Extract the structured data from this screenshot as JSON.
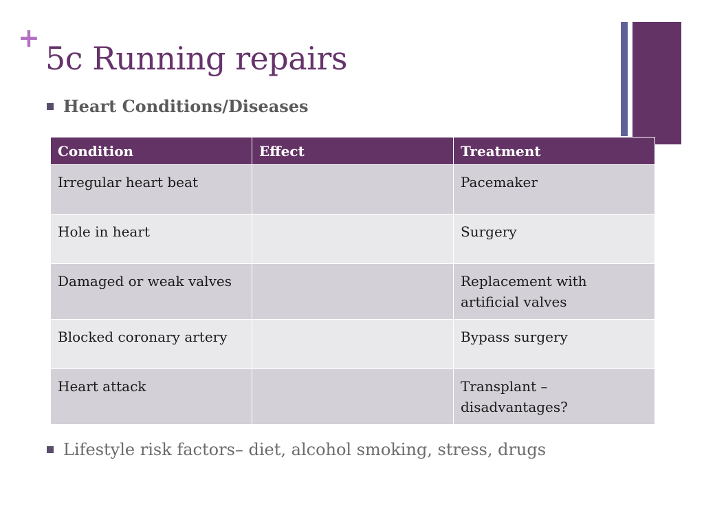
{
  "slide": {
    "plus_glyph": "+",
    "title": "5c Running repairs",
    "bullet_heading": "Heart Conditions/Diseases",
    "bullet_footer": "Lifestyle risk factors– diet, alcohol smoking, stress, drugs"
  },
  "colors": {
    "title": "#66336b",
    "accent_purple": "#643366",
    "accent_slate": "#5f6296",
    "row_dark": "#d3d0d7",
    "row_light": "#e9e8eb"
  },
  "table": {
    "headers": [
      "Condition",
      "Effect",
      "Treatment"
    ],
    "rows": [
      {
        "condition": "Irregular heart beat",
        "effect": "",
        "treatment": "Pacemaker"
      },
      {
        "condition": "Hole in heart",
        "effect": "",
        "treatment": "Surgery"
      },
      {
        "condition": "Damaged or weak valves",
        "effect": "",
        "treatment": "Replacement with artificial valves"
      },
      {
        "condition": "Blocked coronary artery",
        "effect": "",
        "treatment": "Bypass surgery"
      },
      {
        "condition": "Heart attack",
        "effect": "",
        "treatment": "Transplant – disadvantages?"
      }
    ]
  }
}
